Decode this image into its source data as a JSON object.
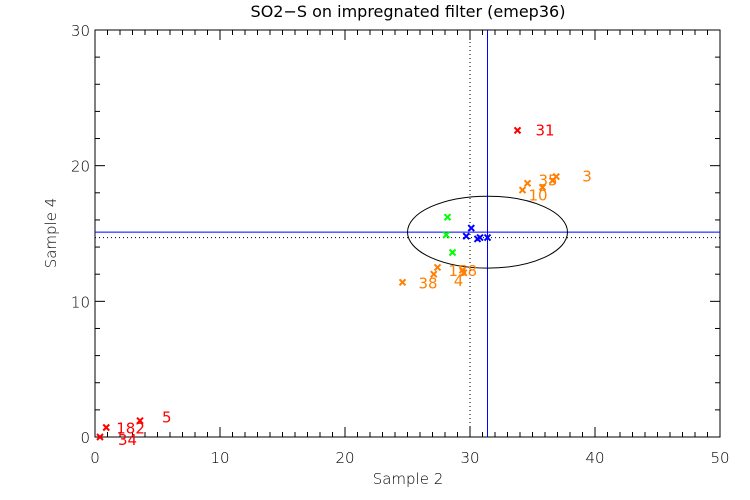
{
  "chart_data": {
    "type": "scatter",
    "title": "SO2−S on impregnated filter (emep36)",
    "xlabel": "Sample 2",
    "ylabel": "Sample 4",
    "xlim": [
      0,
      50
    ],
    "ylim": [
      0,
      30
    ],
    "xticks": [
      "0",
      "10",
      "20",
      "30",
      "40",
      "50"
    ],
    "yticks": [
      "0",
      "10",
      "20",
      "30"
    ],
    "x_minor_step": 1,
    "y_minor_step": 2,
    "grid": false,
    "reference_lines": {
      "blue_vertical_x": 31.4,
      "blue_horizontal_y": 15.1,
      "dotted_vertical_x": 30.0,
      "dotted_horizontal_y": 14.7
    },
    "ellipse": {
      "center": [
        31.4,
        15.1
      ],
      "semi_axis_x": 6.4,
      "semi_axis_y": 2.65
    },
    "colors": {
      "red": "#ff0000",
      "orange": "#ff7f00",
      "green": "#00ff00",
      "blue": "#0000ff",
      "ref_line": "#0000ff"
    },
    "series": [
      {
        "name": "red",
        "color": "#ff0000",
        "points": [
          {
            "x": 33.8,
            "y": 22.6,
            "label": "31"
          },
          {
            "x": 0.9,
            "y": 0.7,
            "label": "182"
          },
          {
            "x": 3.6,
            "y": 1.2,
            "label": "5"
          },
          {
            "x": 0.4,
            "y": 0.0,
            "label": "34"
          }
        ]
      },
      {
        "name": "orange",
        "color": "#ff7f00",
        "points": [
          {
            "x": 36.9,
            "y": 19.2,
            "label": "3"
          },
          {
            "x": 36.6,
            "y": 18.9,
            "label": "35"
          },
          {
            "x": 35.8,
            "y": 18.4,
            "label": "10"
          },
          {
            "x": 34.6,
            "y": 18.7,
            "label": ""
          },
          {
            "x": 34.2,
            "y": 18.2,
            "label": ""
          },
          {
            "x": 24.6,
            "y": 11.4,
            "label": "38"
          },
          {
            "x": 27.1,
            "y": 12.0,
            "label": ""
          },
          {
            "x": 27.4,
            "y": 12.5,
            "label": ""
          },
          {
            "x": 29.4,
            "y": 12.3,
            "label": "158"
          },
          {
            "x": 29.5,
            "y": 12.1,
            "label": "4"
          }
        ]
      },
      {
        "name": "green",
        "color": "#00ff00",
        "points": [
          {
            "x": 28.2,
            "y": 16.2,
            "label": ""
          },
          {
            "x": 28.1,
            "y": 14.9,
            "label": ""
          },
          {
            "x": 28.6,
            "y": 13.6,
            "label": ""
          }
        ]
      },
      {
        "name": "blue",
        "color": "#0000ff",
        "points": [
          {
            "x": 30.1,
            "y": 15.4,
            "label": ""
          },
          {
            "x": 29.7,
            "y": 14.8,
            "label": ""
          },
          {
            "x": 30.6,
            "y": 14.6,
            "label": ""
          },
          {
            "x": 30.8,
            "y": 14.7,
            "label": ""
          },
          {
            "x": 31.4,
            "y": 14.7,
            "label": ""
          }
        ]
      }
    ]
  }
}
